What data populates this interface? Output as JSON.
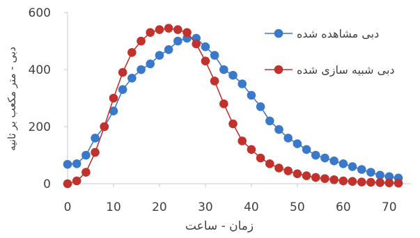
{
  "chart_data": {
    "type": "line",
    "title": "",
    "xlabel": "زمان - ساعت",
    "ylabel": "دبی - متر مکعب بر ثانیه",
    "xlim": [
      0,
      72
    ],
    "ylim": [
      0,
      600
    ],
    "xticks": [
      0,
      10,
      20,
      30,
      40,
      50,
      60,
      70
    ],
    "yticks": [
      0,
      200,
      400,
      600
    ],
    "grid": false,
    "legend_position": "top-right",
    "x": [
      0,
      2,
      4,
      6,
      8,
      10,
      12,
      14,
      16,
      18,
      20,
      22,
      24,
      26,
      28,
      30,
      32,
      34,
      36,
      38,
      40,
      42,
      44,
      46,
      48,
      50,
      52,
      54,
      56,
      58,
      60,
      62,
      64,
      66,
      68,
      70,
      72
    ],
    "series": [
      {
        "name": "دبی مشاهده شده",
        "color": "#3a78c9",
        "values": [
          68,
          70,
          100,
          160,
          200,
          255,
          330,
          370,
          400,
          420,
          450,
          470,
          500,
          510,
          510,
          480,
          450,
          400,
          380,
          350,
          310,
          270,
          220,
          190,
          160,
          140,
          120,
          100,
          90,
          80,
          70,
          60,
          50,
          40,
          30,
          25,
          20
        ]
      },
      {
        "name": "دبی شبیه سازی شده",
        "color": "#c0322b",
        "values": [
          0,
          10,
          40,
          110,
          200,
          300,
          390,
          460,
          500,
          530,
          540,
          545,
          540,
          530,
          490,
          430,
          360,
          280,
          210,
          150,
          120,
          90,
          70,
          55,
          45,
          35,
          28,
          22,
          18,
          14,
          10,
          8,
          6,
          5,
          4,
          3,
          2
        ]
      }
    ]
  }
}
